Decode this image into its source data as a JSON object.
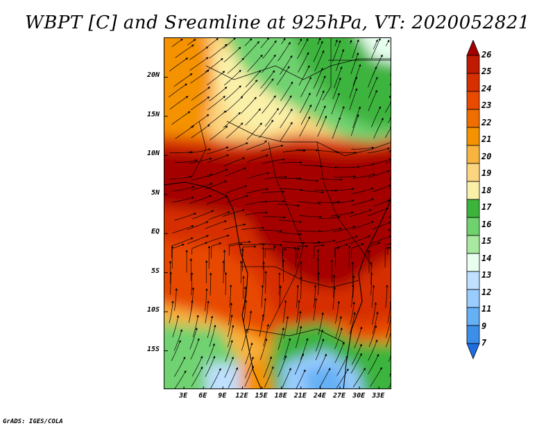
{
  "title": "WBPT [C] and Sreamline at 925hPa, VT: 2020052821",
  "footer": "GrADS: IGES/COLA",
  "map": {
    "lon_range": [
      0,
      35
    ],
    "lat_range": [
      -20,
      25
    ],
    "lat_ticks": [
      {
        "value": 20,
        "label": "20N"
      },
      {
        "value": 15,
        "label": "15N"
      },
      {
        "value": 10,
        "label": "10N"
      },
      {
        "value": 5,
        "label": "5N"
      },
      {
        "value": 0,
        "label": "EQ"
      },
      {
        "value": -5,
        "label": "5S"
      },
      {
        "value": -10,
        "label": "10S"
      },
      {
        "value": -15,
        "label": "15S"
      }
    ],
    "lon_ticks": [
      {
        "value": 3,
        "label": "3E"
      },
      {
        "value": 6,
        "label": "6E"
      },
      {
        "value": 9,
        "label": "9E"
      },
      {
        "value": 12,
        "label": "12E"
      },
      {
        "value": 15,
        "label": "15E"
      },
      {
        "value": 18,
        "label": "18E"
      },
      {
        "value": 21,
        "label": "21E"
      },
      {
        "value": 24,
        "label": "24E"
      },
      {
        "value": 27,
        "label": "27E"
      },
      {
        "value": 30,
        "label": "30E"
      },
      {
        "value": 33,
        "label": "33E"
      }
    ]
  },
  "colorbar": {
    "levels": [
      "26",
      "25",
      "24",
      "23",
      "22",
      "21",
      "20",
      "19",
      "18",
      "17",
      "16",
      "15",
      "14",
      "13",
      "12",
      "11",
      "9",
      "7"
    ],
    "colors": [
      "#a50000",
      "#c01a00",
      "#d62f00",
      "#e84a00",
      "#f06d00",
      "#f59200",
      "#f7b440",
      "#fcd580",
      "#fbf0a8",
      "#3cb43c",
      "#6fd26f",
      "#a8e8a0",
      "#e8fff0",
      "#bfe0ff",
      "#99ccff",
      "#66b0f5",
      "#3c8ee8",
      "#1e6ee0"
    ]
  }
}
